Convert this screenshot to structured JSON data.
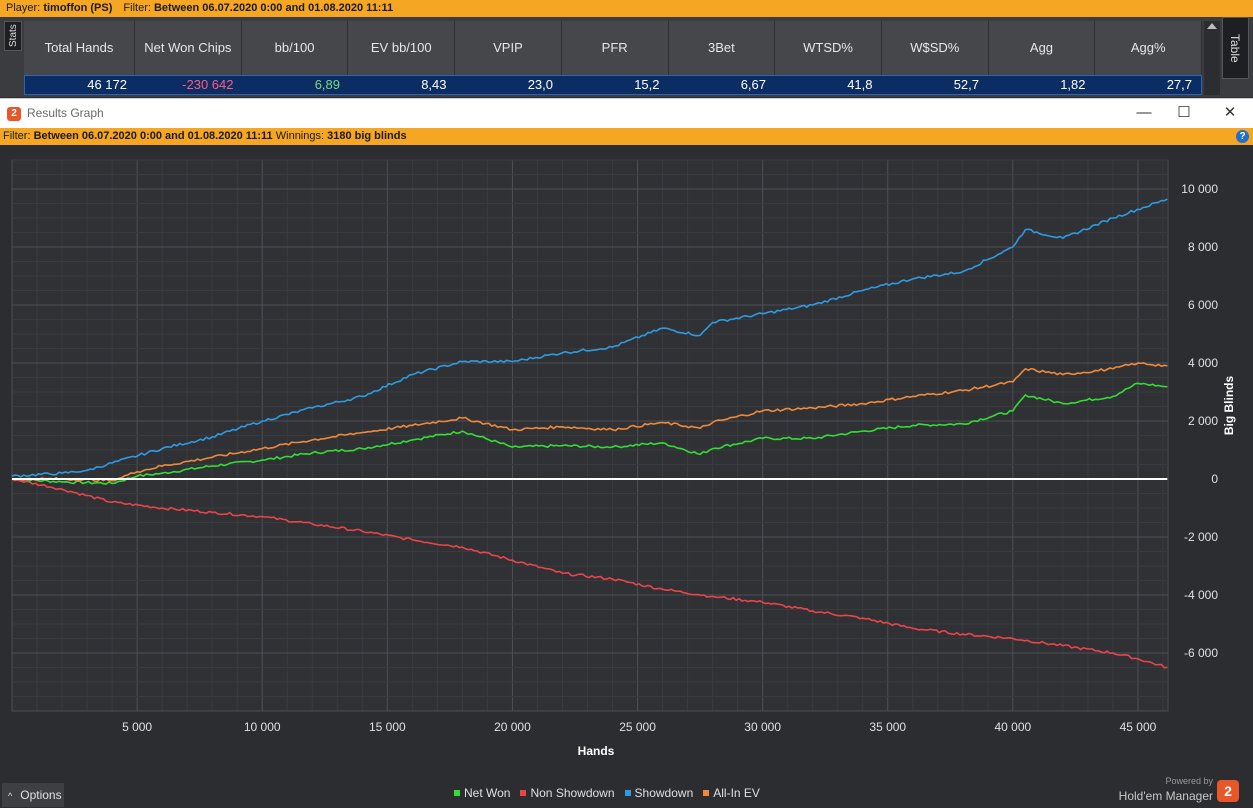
{
  "top_bar": {
    "player_label": "Player:",
    "player_value": "timoffon (PS)",
    "filter_label": "Filter:",
    "filter_value": "Between 06.07.2020 0:00 and 01.08.2020 11:11"
  },
  "stats": {
    "tab_label": "Stats",
    "table_tab_label": "Table",
    "headers": [
      "Total Hands",
      "Net Won Chips",
      "bb/100",
      "EV bb/100",
      "VPIP",
      "PFR",
      "3Bet",
      "WTSD%",
      "W$SD%",
      "Agg",
      "Agg%"
    ],
    "values": [
      "46 172",
      "-230 642",
      "6,89",
      "8,43",
      "23,0",
      "15,2",
      "6,67",
      "41,8",
      "52,7",
      "1,82",
      "27,7"
    ],
    "value_colors": [
      "#ffffff",
      "#ff5d7a",
      "#7dd87d",
      "#ffffff",
      "#ffffff",
      "#ffffff",
      "#ffffff",
      "#ffffff",
      "#ffffff",
      "#ffffff",
      "#ffffff"
    ]
  },
  "window": {
    "title": "Results Graph",
    "logo": "2",
    "minimize_icon": "—",
    "maximize_icon": "☐",
    "close_icon": "✕"
  },
  "filter_bar": {
    "filter_label": "Filter:",
    "filter_value": "Between 06.07.2020 0:00 and 01.08.2020 11:11",
    "winnings_label": "Winnings:",
    "winnings_value": "3180 big blinds",
    "help_icon": "?"
  },
  "chart_data": {
    "type": "line",
    "xlabel": "Hands",
    "ylabel": "Big Blinds",
    "xlim": [
      0,
      46200
    ],
    "ylim": [
      -8000,
      11000
    ],
    "x_ticks": [
      5000,
      10000,
      15000,
      20000,
      25000,
      30000,
      35000,
      40000,
      45000
    ],
    "x_tick_labels": [
      "5 000",
      "10 000",
      "15 000",
      "20 000",
      "25 000",
      "30 000",
      "35 000",
      "40 000",
      "45 000"
    ],
    "y_ticks": [
      10000,
      8000,
      6000,
      4000,
      2000,
      0,
      -2000,
      -4000,
      -6000
    ],
    "y_tick_labels": [
      "10 000",
      "8 000",
      "6 000",
      "4 000",
      "2 000",
      "0",
      "-2 000",
      "-4 000",
      "-6 000"
    ],
    "grid": true,
    "legend_position": "bottom",
    "series": [
      {
        "name": "Net Won",
        "color": "#33dd33",
        "x": [
          0,
          2000,
          4000,
          5000,
          6000,
          8000,
          10000,
          12000,
          14000,
          16000,
          18000,
          20000,
          22000,
          24000,
          26000,
          27500,
          28000,
          30000,
          32000,
          34000,
          36000,
          38000,
          40000,
          40500,
          42000,
          44000,
          45000,
          46172
        ],
        "values": [
          0,
          -100,
          -150,
          100,
          200,
          450,
          650,
          900,
          1050,
          1350,
          1650,
          1100,
          1150,
          1100,
          1250,
          850,
          1050,
          1400,
          1400,
          1650,
          1850,
          1900,
          2350,
          2900,
          2600,
          2850,
          3300,
          3180
        ]
      },
      {
        "name": "Non Showdown",
        "color": "#e8454a",
        "x": [
          0,
          2000,
          4000,
          6000,
          8000,
          10000,
          12000,
          14000,
          16000,
          18000,
          20000,
          22000,
          24000,
          26000,
          28000,
          30000,
          32000,
          34000,
          36000,
          38000,
          40000,
          42000,
          44000,
          45000,
          46172
        ],
        "values": [
          0,
          -350,
          -800,
          -1000,
          -1150,
          -1300,
          -1550,
          -1800,
          -2100,
          -2350,
          -2800,
          -3250,
          -3450,
          -3800,
          -4050,
          -4250,
          -4550,
          -4800,
          -5150,
          -5350,
          -5500,
          -5750,
          -6000,
          -6200,
          -6500
        ]
      },
      {
        "name": "Showdown",
        "color": "#2d9be0",
        "x": [
          0,
          2000,
          3000,
          4000,
          6000,
          8000,
          10000,
          12000,
          14000,
          16000,
          18000,
          20000,
          22000,
          24000,
          26000,
          27500,
          28000,
          30000,
          32000,
          34000,
          36000,
          38000,
          40000,
          40500,
          42000,
          44000,
          46172
        ],
        "values": [
          100,
          200,
          300,
          550,
          1050,
          1450,
          2000,
          2450,
          2850,
          3600,
          4050,
          4050,
          4350,
          4550,
          5200,
          4950,
          5400,
          5700,
          6000,
          6500,
          6900,
          7150,
          8000,
          8600,
          8300,
          9000,
          9650
        ]
      },
      {
        "name": "All-In EV",
        "color": "#f08a3a",
        "x": [
          0,
          2000,
          4000,
          5000,
          6000,
          8000,
          10000,
          12000,
          14000,
          16000,
          18000,
          20000,
          22000,
          24000,
          26000,
          27500,
          28000,
          30000,
          32000,
          34000,
          36000,
          38000,
          40000,
          40500,
          42000,
          44000,
          45000,
          46172
        ],
        "values": [
          0,
          0,
          -50,
          250,
          450,
          750,
          1050,
          1350,
          1600,
          1850,
          2100,
          1700,
          1800,
          1700,
          1950,
          1750,
          1950,
          2350,
          2450,
          2600,
          2850,
          3050,
          3350,
          3800,
          3600,
          3800,
          4000,
          3900
        ]
      },
      {
        "name": "",
        "color": "#ffffff",
        "x": [
          0,
          46172
        ],
        "values": [
          0,
          0
        ]
      }
    ]
  },
  "bottom": {
    "options_label": "Options",
    "options_caret": "^",
    "powered_by": "Powered by",
    "brand_name": "Hold'em Manager",
    "brand_logo": "2"
  }
}
